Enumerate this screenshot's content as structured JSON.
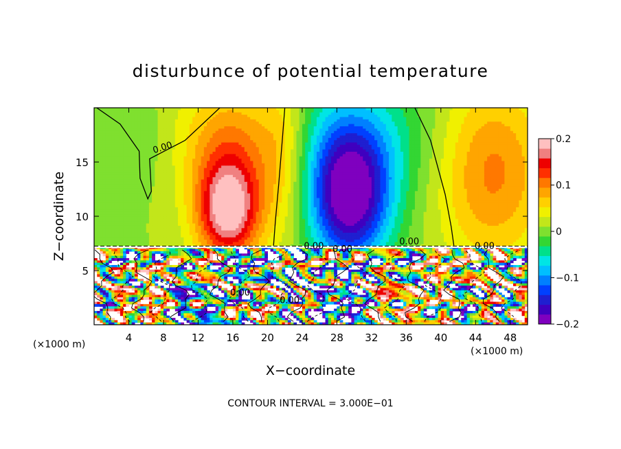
{
  "chart_data": {
    "type": "heatmap",
    "title": "disturbunce of potential temperature",
    "xlabel": "X−coordinate",
    "ylabel": "Z−coordinate",
    "x_unit_left": "(×1000 m)",
    "x_unit_right": "(×1000 m)",
    "xlim": [
      0,
      50
    ],
    "ylim": [
      0,
      20
    ],
    "x_ticks": [
      4,
      8,
      12,
      16,
      20,
      24,
      28,
      32,
      36,
      40,
      44,
      48
    ],
    "y_ticks": [
      5,
      10,
      15
    ],
    "colorbar": {
      "vmin": -0.2,
      "vmax": 0.2,
      "tick_values": [
        0.2,
        0.1,
        0,
        -0.1,
        -0.2
      ],
      "tick_labels": [
        "0.2",
        "0.1",
        "0",
        "−0.1",
        "−0.2"
      ],
      "colors": [
        "#7f00bf",
        "#3f00bf",
        "#1f1fd0",
        "#0040ff",
        "#0080ff",
        "#00bfff",
        "#00e5e5",
        "#00e08a",
        "#33d633",
        "#7fe02f",
        "#c2e61a",
        "#f0f000",
        "#ffd000",
        "#ffa500",
        "#ff7800",
        "#ff3000",
        "#ee0000",
        "#f08080",
        "#ffc0c0"
      ]
    },
    "contour_labels": [
      "0.00",
      "0.00",
      "0.00",
      "0.00",
      "0.00",
      "0.00",
      "0.00"
    ],
    "footer": "CONTOUR INTERVAL = 3.000E−01",
    "inversion_height": 7.2,
    "features": [
      {
        "kind": "warm-anomaly",
        "x": 15.5,
        "z": 11.0,
        "value": 0.18
      },
      {
        "kind": "cold-anomaly",
        "x": 29.5,
        "z": 11.5,
        "value": -0.19
      },
      {
        "kind": "warm-anomaly",
        "x": 45.0,
        "z": 14.0,
        "value": 0.08
      },
      {
        "kind": "near-zero",
        "x": 4.0,
        "z": 16.5,
        "value": 0.01
      }
    ]
  }
}
